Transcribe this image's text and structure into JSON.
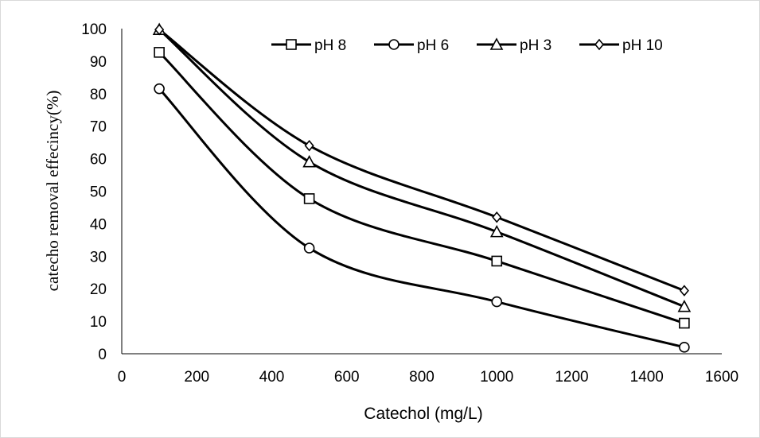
{
  "chart_data": {
    "type": "line",
    "xlabel": "Catechol (mg/L)",
    "ylabel": "catecho removal effecincy(%)",
    "xlim": [
      0,
      1600
    ],
    "ylim": [
      0,
      100
    ],
    "x_ticks": [
      "0",
      "200",
      "400",
      "600",
      "800",
      "1000",
      "1200",
      "1400",
      "1600"
    ],
    "y_ticks": [
      "0",
      "10",
      "20",
      "30",
      "40",
      "50",
      "60",
      "70",
      "80",
      "90",
      "100"
    ],
    "grid": false,
    "legend_position": "top-right",
    "line_color": "#000000",
    "x": [
      100,
      500,
      1000,
      1500
    ],
    "series": [
      {
        "name": "pH 8",
        "marker": "square",
        "values": [
          92.7,
          47.7,
          28.5,
          9.4
        ]
      },
      {
        "name": "pH 6",
        "marker": "circle",
        "values": [
          81.5,
          32.5,
          16.0,
          2.0
        ]
      },
      {
        "name": "pH 3",
        "marker": "triangle",
        "values": [
          99.7,
          59.0,
          37.5,
          14.5
        ]
      },
      {
        "name": "pH 10",
        "marker": "diamond",
        "values": [
          99.7,
          64.0,
          42.0,
          19.4
        ]
      }
    ]
  }
}
